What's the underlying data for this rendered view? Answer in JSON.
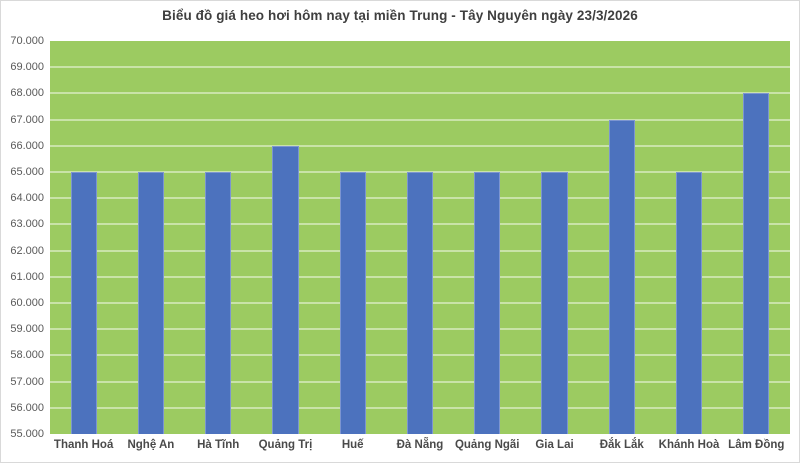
{
  "chart_data": {
    "type": "bar",
    "title": "Biểu đồ giá heo hơi hôm nay tại miền Trung - Tây Nguyên ngày 23/3/2026",
    "categories": [
      "Thanh Hoá",
      "Nghệ An",
      "Hà Tĩnh",
      "Quảng Trị",
      "Huế",
      "Đà Nẵng",
      "Quảng Ngãi",
      "Gia Lai",
      "Đắk Lắk",
      "Khánh Hoà",
      "Lâm Đồng"
    ],
    "values": [
      65000,
      65000,
      65000,
      66000,
      65000,
      65000,
      65000,
      65000,
      67000,
      65000,
      68000
    ],
    "y_tick_labels": [
      "55.000",
      "56.000",
      "57.000",
      "58.000",
      "59.000",
      "60.000",
      "61.000",
      "62.000",
      "63.000",
      "64.000",
      "65.000",
      "66.000",
      "67.000",
      "68.000",
      "69.000",
      "70.000"
    ],
    "ylim": [
      55000,
      70000
    ],
    "y_step": 1000,
    "xlabel": "",
    "ylabel": "",
    "grid": true,
    "legend": false,
    "colors": {
      "plot_bg": "#9CCB61",
      "gridline": "#C9E3A8",
      "bar": "#4C72BE",
      "bar_border": "#7C95D1",
      "title_text": "#3F3F3F",
      "axis_text": "#595959"
    }
  }
}
